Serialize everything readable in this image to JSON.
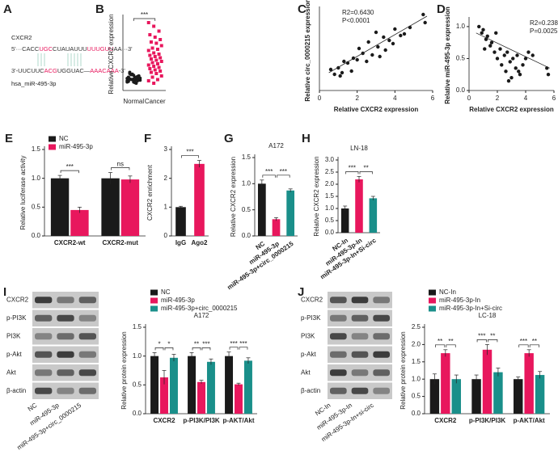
{
  "sequence": {
    "panel": "A",
    "gene": "CXCR2",
    "mirna": "hsa_miR-495-3p",
    "top": [
      {
        "text": "5'···CACC",
        "color": "#333333"
      },
      {
        "text": "UGC",
        "color": "#e8175d"
      },
      {
        "text": "CUAUAUUU",
        "color": "#333333"
      },
      {
        "text": "UUUGUU",
        "color": "#e8175d"
      },
      {
        "text": "AA···3'",
        "color": "#333333"
      }
    ],
    "bottom": [
      {
        "text": "3'-UUCUUC",
        "color": "#333333"
      },
      {
        "text": "ACG",
        "color": "#e8175d"
      },
      {
        "text": "UGGUAC—",
        "color": "#333333"
      },
      {
        "text": "AAACAAA",
        "color": "#e8175d"
      },
      {
        "text": "-3'",
        "color": "#333333"
      }
    ]
  },
  "blots": [
    {
      "rows": [
        "CXCR2",
        "p-PI3K",
        "PI3K",
        "p-Akt",
        "Akt",
        "β-actin"
      ],
      "lanes": [
        "NC",
        "miR-495-3p",
        "miR-495-3p+circ_0000215"
      ]
    },
    {
      "rows": [
        "CXCR2",
        "p-PI3K",
        "PI3K",
        "p-Akt",
        "Akt",
        "β-actin"
      ],
      "lanes": [
        "NC-In",
        "miR-495-3p-In",
        "miR-495-3p-In+si-circ"
      ]
    }
  ],
  "chart_data": [
    {
      "type": "strip",
      "panel": "B",
      "y_label": "Relative CXCR2 expression",
      "categories": [
        "Normal",
        "Cancer"
      ],
      "colors": [
        "#1a1a1a",
        "#e8175d"
      ],
      "ylim": [
        0,
        6
      ],
      "significance": [
        "***"
      ],
      "values": [
        [
          0.8,
          0.9,
          1.0,
          1.1,
          0.7,
          1.2,
          0.95,
          1.05,
          0.85,
          1.3,
          0.6,
          1.0,
          0.9,
          1.15,
          0.75,
          1.25,
          0.98,
          1.4,
          0.88,
          1.02,
          0.92,
          1.1,
          0.7,
          1.35,
          0.8,
          1.05,
          0.95,
          1.2,
          1.5,
          0.65
        ],
        [
          5.6,
          5.3,
          4.9,
          4.6,
          4.4,
          4.2,
          4.0,
          3.9,
          3.7,
          3.5,
          3.4,
          3.3,
          3.1,
          3.0,
          2.9,
          2.8,
          2.7,
          2.6,
          2.5,
          2.4,
          2.3,
          2.2,
          2.1,
          2.0,
          1.9,
          1.8,
          1.7,
          1.6,
          1.5,
          1.4,
          1.2,
          1.1,
          0.9,
          0.8,
          0.6
        ]
      ]
    },
    {
      "type": "scatter",
      "panel": "C",
      "x_label": "Relative CXCR2 expression",
      "y_label": "Relative circ_0000215  expression",
      "annotations": [
        "R2=0.6430",
        "P<0.0001"
      ],
      "color": "#1a1a1a",
      "xlim": [
        0,
        6
      ],
      "xticks": [
        0,
        2,
        4,
        6
      ],
      "ylim": [
        0,
        5
      ],
      "x": [
        0.6,
        0.8,
        1.0,
        1.1,
        1.3,
        1.5,
        1.7,
        1.8,
        2.0,
        2.1,
        2.3,
        2.5,
        2.6,
        2.8,
        3.0,
        3.1,
        3.2,
        3.4,
        3.5,
        3.7,
        3.9,
        4.0,
        4.3,
        4.5,
        4.8,
        5.5,
        5.6,
        1.2
      ],
      "y": [
        1.3,
        1.0,
        1.4,
        0.9,
        1.8,
        1.7,
        1.2,
        2.0,
        1.9,
        2.6,
        2.3,
        1.8,
        3.0,
        2.2,
        3.6,
        2.7,
        2.1,
        3.3,
        2.5,
        3.1,
        2.9,
        3.8,
        3.4,
        3.5,
        3.9,
        4.7,
        4.2,
        1.1
      ],
      "trendline": {
        "x": [
          0.5,
          5.7
        ],
        "y": [
          1.1,
          4.6
        ]
      }
    },
    {
      "type": "scatter",
      "panel": "D",
      "x_label": "Relative CXCR2 expression",
      "y_label": "Relative miR-495-3p expression",
      "annotations": [
        "R2=0.2383",
        "P=0.0025"
      ],
      "color": "#1a1a1a",
      "xlim": [
        0,
        6
      ],
      "xticks": [
        0,
        2,
        4,
        6
      ],
      "ylim": [
        0,
        1.1
      ],
      "yticks": [
        {
          "value": 0,
          "label": "0.0"
        },
        {
          "value": 0.5,
          "label": "0.5"
        },
        {
          "value": 1,
          "label": "1.0"
        }
      ],
      "x": [
        0.7,
        0.9,
        1.0,
        1.2,
        1.3,
        1.5,
        1.6,
        1.8,
        1.9,
        2.0,
        2.2,
        2.3,
        2.5,
        2.6,
        2.7,
        2.9,
        3.0,
        3.1,
        3.3,
        3.4,
        3.6,
        3.8,
        4.0,
        4.2,
        4.5,
        5.5,
        5.6,
        1.1,
        2.8,
        3.5
      ],
      "y": [
        1.0,
        0.9,
        0.95,
        0.8,
        0.85,
        0.7,
        0.75,
        0.6,
        0.9,
        0.5,
        0.65,
        0.4,
        0.55,
        0.3,
        0.6,
        0.45,
        0.2,
        0.5,
        0.35,
        0.55,
        0.25,
        0.4,
        0.5,
        0.6,
        0.55,
        0.35,
        0.25,
        0.65,
        0.15,
        0.3
      ],
      "trendline": {
        "x": [
          0.5,
          5.7
        ],
        "y": [
          0.9,
          0.35
        ]
      }
    },
    {
      "type": "bar",
      "panel": "E",
      "y_label": "Relative luciferase activity",
      "categories": [
        "CXCR2-wt",
        "CXCR2-mut"
      ],
      "ylim": [
        0,
        1.5
      ],
      "yticks": [
        {
          "value": 0,
          "label": "0.0"
        },
        {
          "value": 0.5,
          "label": "0.5"
        },
        {
          "value": 1,
          "label": "1.0"
        },
        {
          "value": 1.5,
          "label": "1.5"
        }
      ],
      "series": [
        {
          "name": "NC",
          "color": "#1a1a1a",
          "values": [
            1.0,
            1.0
          ],
          "errors": [
            0.05,
            0.1
          ]
        },
        {
          "name": "miR-495-3p",
          "color": "#e8175d",
          "values": [
            0.45,
            0.98
          ],
          "errors": [
            0.05,
            0.06
          ]
        }
      ],
      "significance": [
        [
          "***"
        ],
        [
          "ns"
        ]
      ]
    },
    {
      "type": "bar",
      "panel": "F",
      "y_label": "CXCR2 enrichment",
      "categories": [
        "IgG",
        "Ago2"
      ],
      "colors": [
        "#1a1a1a",
        "#e8175d"
      ],
      "values": [
        1.0,
        2.5
      ],
      "errors": [
        0.03,
        0.12
      ],
      "ylim": [
        0,
        3
      ],
      "yticks": [
        0,
        1,
        2,
        3
      ],
      "significance": [
        "***"
      ]
    },
    {
      "type": "bar",
      "panel": "G",
      "title": "A172",
      "y_label": "Relative CXCR2 expression",
      "categories": [
        "NC",
        "miR-495-3p",
        "miR-495-3p+circ_0000215"
      ],
      "colors": [
        "#1a1a1a",
        "#e8175d",
        "#1a8f8a"
      ],
      "values": [
        1.0,
        0.32,
        0.87
      ],
      "errors": [
        0.07,
        0.03,
        0.03
      ],
      "ylim": [
        0,
        1.5
      ],
      "yticks": [
        {
          "value": 0,
          "label": "0.0"
        },
        {
          "value": 0.5,
          "label": "0.5"
        },
        {
          "value": 1,
          "label": "1.0"
        },
        {
          "value": 1.5,
          "label": "1.5"
        }
      ],
      "significance": [
        "***",
        "***"
      ]
    },
    {
      "type": "bar",
      "panel": "H",
      "title": "LN-18",
      "y_label": "Relative CXCR2 expression",
      "categories": [
        "NC-In",
        "miR-495-3p-In",
        "miR-495-3p-In+Si-circ"
      ],
      "colors": [
        "#1a1a1a",
        "#e8175d",
        "#1a8f8a"
      ],
      "values": [
        1.0,
        2.2,
        1.42
      ],
      "errors": [
        0.1,
        0.12,
        0.08
      ],
      "ylim": [
        0,
        3
      ],
      "yticks": [
        {
          "value": 0,
          "label": "0.0"
        },
        {
          "value": 0.5,
          "label": "0.5"
        },
        {
          "value": 1,
          "label": "1.0"
        },
        {
          "value": 1.5,
          "label": "1.5"
        },
        {
          "value": 2,
          "label": "2.0"
        },
        {
          "value": 2.5,
          "label": "2.5"
        },
        {
          "value": 3,
          "label": "3.0"
        }
      ],
      "significance": [
        "***",
        "**"
      ]
    },
    {
      "type": "bar",
      "panel": "I",
      "title": "A172",
      "y_label": "Relative protein expression",
      "categories": [
        "CXCR2",
        "p-PI3K/PI3K",
        "p-AKT/Akt"
      ],
      "ylim": [
        0,
        1.5
      ],
      "yticks": [
        {
          "value": 0,
          "label": "0.0"
        },
        {
          "value": 0.5,
          "label": "0.5"
        },
        {
          "value": 1,
          "label": "1.0"
        },
        {
          "value": 1.5,
          "label": "1.5"
        }
      ],
      "series": [
        {
          "name": "NC",
          "color": "#1a1a1a",
          "values": [
            1.0,
            1.0,
            1.0
          ],
          "errors": [
            0.06,
            0.06,
            0.07
          ]
        },
        {
          "name": "miR-495-3p",
          "color": "#e8175d",
          "values": [
            0.63,
            0.55,
            0.51
          ],
          "errors": [
            0.12,
            0.03,
            0.02
          ]
        },
        {
          "name": "miR-495-3p+circ_0000215",
          "color": "#1a8f8a",
          "values": [
            0.97,
            0.9,
            0.92
          ],
          "errors": [
            0.06,
            0.05,
            0.05
          ]
        }
      ],
      "significance": [
        [
          "*",
          "*"
        ],
        [
          "**",
          "***"
        ],
        [
          "***",
          "***"
        ]
      ]
    },
    {
      "type": "bar",
      "panel": "J",
      "title": "LC-18",
      "y_label": "Relative protein expression",
      "categories": [
        "CXCR2",
        "p-PI3K/PI3K",
        "p-AKT/Akt"
      ],
      "ylim": [
        0,
        2.5
      ],
      "yticks": [
        {
          "value": 0,
          "label": "0.0"
        },
        {
          "value": 0.5,
          "label": "0.5"
        },
        {
          "value": 1,
          "label": "1.0"
        },
        {
          "value": 1.5,
          "label": "1.5"
        },
        {
          "value": 2,
          "label": "2.0"
        },
        {
          "value": 2.5,
          "label": "2.5"
        }
      ],
      "series": [
        {
          "name": "NC-In",
          "color": "#1a1a1a",
          "values": [
            1.0,
            1.0,
            1.0
          ],
          "errors": [
            0.15,
            0.12,
            0.06
          ]
        },
        {
          "name": "miR-495-3p-In",
          "color": "#e8175d",
          "values": [
            1.75,
            1.85,
            1.75
          ],
          "errors": [
            0.1,
            0.15,
            0.1
          ]
        },
        {
          "name": "miR-495-3p-In+Si-circ",
          "color": "#1a8f8a",
          "values": [
            1.0,
            1.2,
            1.12
          ],
          "errors": [
            0.12,
            0.12,
            0.1
          ]
        }
      ],
      "significance": [
        [
          "**",
          "**"
        ],
        [
          "***",
          "**"
        ],
        [
          "***",
          "**"
        ]
      ]
    }
  ]
}
